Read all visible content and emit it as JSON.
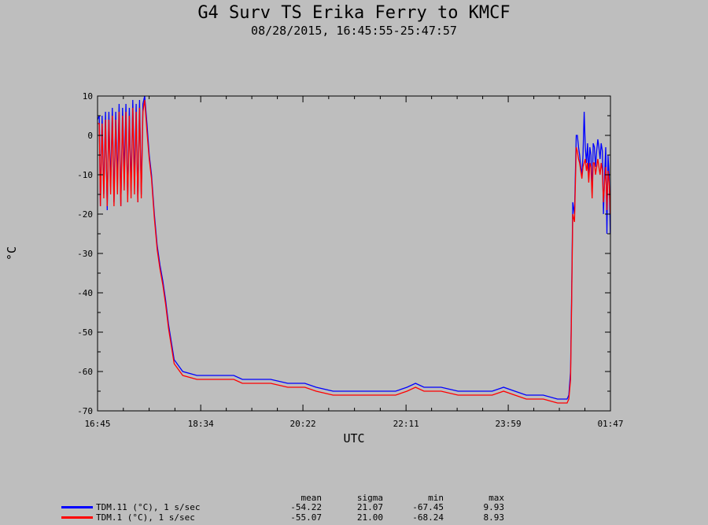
{
  "chart_data": {
    "type": "line",
    "title": "G4 Surv TS Erika Ferry to KMCF",
    "subtitle": "08/28/2015, 16:45:55-25:47:57",
    "xlabel": "UTC",
    "ylabel": "°C",
    "ylim": [
      -70,
      10
    ],
    "yticks": [
      "10",
      "0",
      "-10",
      "-20",
      "-30",
      "-40",
      "-50",
      "-60",
      "-70"
    ],
    "xlim_hours": [
      16.75,
      25.783
    ],
    "xticks": [
      {
        "label": "16:45",
        "h": 16.75
      },
      {
        "label": "18:34",
        "h": 18.567
      },
      {
        "label": "20:22",
        "h": 20.367
      },
      {
        "label": "22:11",
        "h": 22.183
      },
      {
        "label": "23:59",
        "h": 23.983
      },
      {
        "label": "01:47",
        "h": 25.783
      }
    ],
    "series": [
      {
        "name": "TDM.11 (°C), 1 s/sec",
        "color": "#0000ff",
        "mean": "-54.22",
        "sigma": "21.07",
        "min": "-67.45",
        "max": "9.93",
        "x": [
          16.75,
          16.78,
          16.8,
          16.83,
          16.86,
          16.89,
          16.92,
          16.95,
          16.98,
          17.01,
          17.04,
          17.07,
          17.1,
          17.13,
          17.16,
          17.19,
          17.22,
          17.25,
          17.28,
          17.31,
          17.34,
          17.37,
          17.4,
          17.43,
          17.46,
          17.49,
          17.52,
          17.55,
          17.58,
          17.62,
          17.66,
          17.7,
          17.75,
          17.8,
          17.85,
          17.9,
          17.95,
          18.0,
          18.1,
          18.25,
          18.5,
          18.8,
          19.0,
          19.15,
          19.3,
          19.5,
          19.8,
          20.1,
          20.4,
          20.6,
          20.9,
          21.2,
          21.4,
          21.7,
          22.0,
          22.2,
          22.35,
          22.5,
          22.8,
          23.1,
          23.4,
          23.7,
          23.9,
          24.1,
          24.3,
          24.6,
          24.85,
          24.95,
          25.0,
          25.02,
          25.05,
          25.08,
          25.1,
          25.12,
          25.15,
          25.18,
          25.2,
          25.22,
          25.24,
          25.26,
          25.28,
          25.3,
          25.32,
          25.34,
          25.36,
          25.38,
          25.4,
          25.42,
          25.44,
          25.46,
          25.48,
          25.5,
          25.52,
          25.54,
          25.56,
          25.58,
          25.6,
          25.62,
          25.64,
          25.66,
          25.68,
          25.7,
          25.72,
          25.74,
          25.76,
          25.78
        ],
        "y": [
          4,
          5,
          -18,
          5,
          -15,
          6,
          -19,
          6,
          -13,
          7,
          -17,
          6,
          -12,
          8,
          -18,
          7,
          -10,
          8,
          -16,
          7,
          -14,
          9,
          -12,
          8,
          -17,
          9,
          -15,
          8,
          10,
          3,
          -5,
          -10,
          -20,
          -28,
          -33,
          -37,
          -42,
          -48,
          -57,
          -60,
          -61,
          -61,
          -61,
          -61,
          -62,
          -62,
          -62,
          -63,
          -63,
          -64,
          -65,
          -65,
          -65,
          -65,
          -65,
          -64,
          -63,
          -64,
          -64,
          -65,
          -65,
          -65,
          -64,
          -65,
          -66,
          -66,
          -67,
          -67,
          -67,
          -67,
          -66,
          -60,
          -40,
          -17,
          -20,
          0,
          0,
          -3,
          -5,
          -8,
          -10,
          -5,
          6,
          -3,
          -7,
          -2,
          -10,
          -3,
          -5,
          -15,
          -2,
          -3,
          -8,
          -4,
          -1,
          -3,
          -6,
          -2,
          -4,
          -20,
          -10,
          -3,
          -25,
          -5,
          -10,
          -25
        ]
      },
      {
        "name": "TDM.1 (°C), 1 s/sec",
        "color": "#ff0000",
        "mean": "-55.07",
        "sigma": "21.00",
        "min": "-68.24",
        "max": "8.93",
        "x": [
          16.75,
          16.78,
          16.8,
          16.83,
          16.86,
          16.89,
          16.92,
          16.95,
          16.98,
          17.01,
          17.04,
          17.07,
          17.1,
          17.13,
          17.16,
          17.19,
          17.22,
          17.25,
          17.28,
          17.31,
          17.34,
          17.37,
          17.4,
          17.43,
          17.46,
          17.49,
          17.52,
          17.55,
          17.58,
          17.62,
          17.66,
          17.7,
          17.75,
          17.8,
          17.85,
          17.9,
          17.95,
          18.0,
          18.1,
          18.25,
          18.5,
          18.8,
          19.0,
          19.15,
          19.3,
          19.5,
          19.8,
          20.1,
          20.4,
          20.6,
          20.9,
          21.2,
          21.4,
          21.7,
          22.0,
          22.2,
          22.35,
          22.5,
          22.8,
          23.1,
          23.4,
          23.7,
          23.9,
          24.1,
          24.3,
          24.6,
          24.85,
          24.95,
          25.0,
          25.02,
          25.05,
          25.08,
          25.1,
          25.12,
          25.15,
          25.18,
          25.2,
          25.22,
          25.24,
          25.26,
          25.28,
          25.3,
          25.32,
          25.34,
          25.36,
          25.38,
          25.4,
          25.42,
          25.44,
          25.46,
          25.48,
          25.5,
          25.52,
          25.54,
          25.56,
          25.58,
          25.6,
          25.62,
          25.64,
          25.66,
          25.68,
          25.7,
          25.72,
          25.74,
          25.76,
          25.78
        ],
        "y": [
          3,
          3,
          -18,
          3,
          -16,
          4,
          -18,
          4,
          -15,
          5,
          -18,
          4,
          -15,
          6,
          -18,
          5,
          -14,
          6,
          -17,
          5,
          -16,
          7,
          -15,
          6,
          -17,
          7,
          -16,
          6,
          9,
          1,
          -6,
          -11,
          -21,
          -29,
          -34,
          -38,
          -43,
          -49,
          -58,
          -61,
          -62,
          -62,
          -62,
          -62,
          -63,
          -63,
          -63,
          -64,
          -64,
          -65,
          -66,
          -66,
          -66,
          -66,
          -66,
          -65,
          -64,
          -65,
          -65,
          -66,
          -66,
          -66,
          -65,
          -66,
          -67,
          -67,
          -68,
          -68,
          -68,
          -68,
          -67,
          -62,
          -42,
          -20,
          -22,
          -3,
          -4,
          -6,
          -7,
          -9,
          -11,
          -8,
          -7,
          -6,
          -9,
          -7,
          -12,
          -7,
          -8,
          -16,
          -7,
          -7,
          -10,
          -8,
          -6,
          -8,
          -10,
          -7,
          -9,
          -17,
          -12,
          -8,
          -19,
          -9,
          -12,
          -20
        ]
      }
    ],
    "stats_headers": [
      "mean",
      "sigma",
      "min",
      "max"
    ]
  }
}
